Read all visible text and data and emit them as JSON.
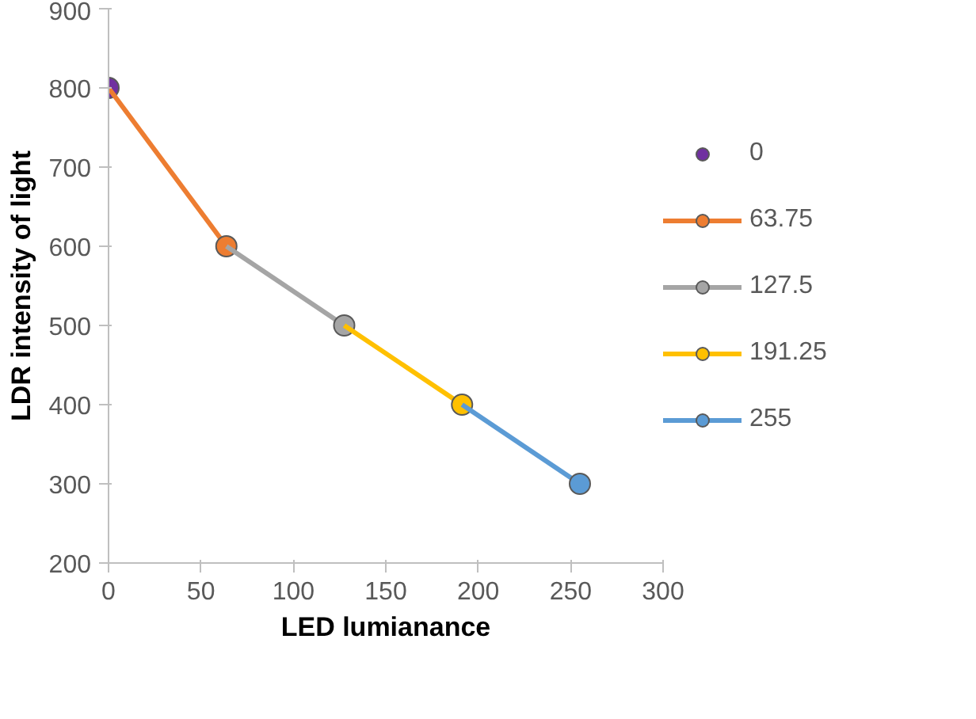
{
  "chart_data": {
    "type": "line",
    "xlabel": "LED lumianance",
    "ylabel": "LDR intensity of light",
    "xlim": [
      0,
      300
    ],
    "xticks": [
      0,
      50,
      100,
      150,
      200,
      250,
      300
    ],
    "ylim": [
      200,
      900
    ],
    "yticks": [
      200,
      300,
      400,
      500,
      600,
      700,
      800,
      900
    ],
    "grid": false,
    "legend": "right",
    "marker": "circle",
    "series": [
      {
        "name": "0",
        "color": "#7030a0",
        "x": [
          0
        ],
        "values": [
          800
        ]
      },
      {
        "name": "63.75",
        "color": "#ed7d31",
        "x": [
          0,
          63.75
        ],
        "values": [
          800,
          600
        ]
      },
      {
        "name": "127.5",
        "color": "#a5a5a5",
        "x": [
          63.75,
          127.5
        ],
        "values": [
          600,
          500
        ]
      },
      {
        "name": "191.25",
        "color": "#ffc000",
        "x": [
          127.5,
          191.25
        ],
        "values": [
          500,
          400
        ]
      },
      {
        "name": "255",
        "color": "#5b9bd5",
        "x": [
          191.25,
          255
        ],
        "values": [
          400,
          300
        ]
      }
    ]
  }
}
